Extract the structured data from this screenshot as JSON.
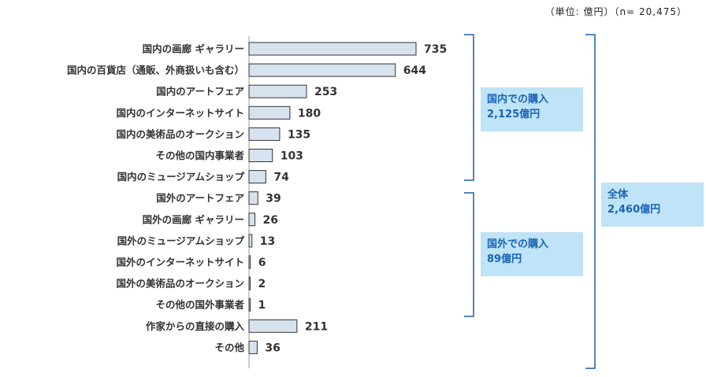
{
  "unit_note": "（単位: 億円）（n= 20,475）",
  "callouts": {
    "domestic": {
      "line1": "国内での購入",
      "line2": "2,125億円"
    },
    "overseas": {
      "line1": "国外での購入",
      "line2": "89億円"
    },
    "total": {
      "line1": "全体",
      "line2": "2,460億円"
    }
  },
  "colors": {
    "bar_fill": "#d6e2ee",
    "bar_stroke": "#333333",
    "bracket": "#1f5fa8",
    "callout_bg": "#bfe3f7",
    "callout_text": "#1863b7"
  },
  "chart_data": {
    "type": "bar",
    "orientation": "horizontal",
    "categories": [
      "国内の画廊 ギャラリー",
      "国内の百貨店（通販、外商扱いも含む）",
      "国内のアートフェア",
      "国内のインターネットサイト",
      "国内の美術品のオークション",
      "その他の国内事業者",
      "国内のミュージアムショップ",
      "国外のアートフェア",
      "国外の画廊 ギャラリー",
      "国外のミュージアムショップ",
      "国外のインターネットサイト",
      "国外の美術品のオークション",
      "その他の国外事業者",
      "作家からの直接の購入",
      "その他"
    ],
    "values": [
      735,
      644,
      253,
      180,
      135,
      103,
      74,
      39,
      26,
      13,
      6,
      2,
      1,
      211,
      36
    ],
    "xlim": [
      0,
      800
    ],
    "grid": false,
    "legend": "none"
  }
}
